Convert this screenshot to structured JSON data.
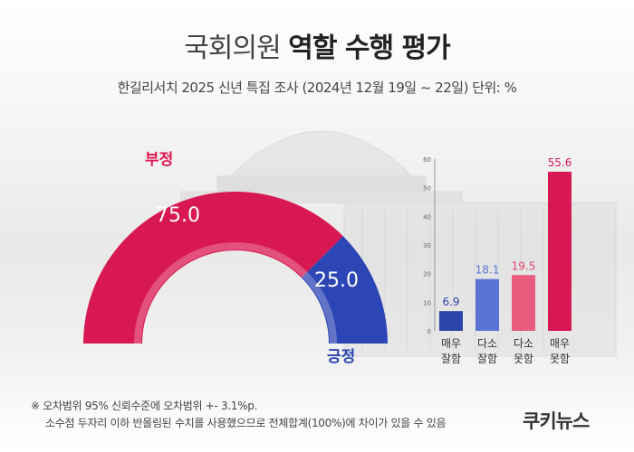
{
  "header": {
    "title_light": "국회의원",
    "title_bold": "역할 수행 평가",
    "subtitle": "한길리서치 2025 신년 특집 조사 (2024년 12월 19일 ~ 22일) 단위: %"
  },
  "chart_data": [
    {
      "type": "pie",
      "categories": [
        "부정",
        "긍정"
      ],
      "values": [
        75.0,
        25.0
      ],
      "value_labels": [
        "75.0",
        "25.0"
      ],
      "colors": [
        "#d81852",
        "#2c46b5"
      ]
    },
    {
      "type": "bar",
      "categories": [
        [
          "매우",
          "잘함"
        ],
        [
          "다소",
          "잘함"
        ],
        [
          "다소",
          "못함"
        ],
        [
          "매우",
          "못함"
        ]
      ],
      "values": [
        6.9,
        18.1,
        19.5,
        55.6
      ],
      "value_labels": [
        "6.9",
        "18.1",
        "19.5",
        "55.6"
      ],
      "colors": [
        "#2a44a8",
        "#5a74d6",
        "#e85c7e",
        "#d81852"
      ],
      "label_colors": [
        "#2a44a8",
        "#5a74d6",
        "#e04a70",
        "#d81852"
      ],
      "ylim": [
        0,
        60
      ],
      "yticks": [
        "0",
        "10",
        "20",
        "30",
        "40",
        "50",
        "60"
      ],
      "grid": false
    }
  ],
  "footnote": {
    "line1": "※ 오차범위 95% 신뢰수준에 오차범위 +- 3.1%p.",
    "line2": "소수점 두자리 이하 반올림된 수치를 사용했으므로 전체합계(100%)에 차이가 있을 수 있음"
  },
  "brand": {
    "logo_text": "쿠키뉴스"
  }
}
